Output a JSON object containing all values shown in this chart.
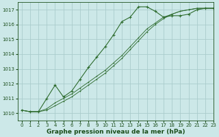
{
  "bg_color": "#cce8e8",
  "grid_color": "#aacccc",
  "line_color": "#2d6b2d",
  "text_color": "#1a4d1a",
  "xlabel": "Graphe pression niveau de la mer (hPa)",
  "xlim": [
    -0.5,
    23
  ],
  "ylim": [
    1009.5,
    1017.5
  ],
  "yticks": [
    1010,
    1011,
    1012,
    1013,
    1014,
    1015,
    1016,
    1017
  ],
  "xticks": [
    0,
    1,
    2,
    3,
    4,
    5,
    6,
    7,
    8,
    9,
    10,
    11,
    12,
    13,
    14,
    15,
    16,
    17,
    18,
    19,
    20,
    21,
    22,
    23
  ],
  "series1_x": [
    0,
    1,
    2,
    3,
    4,
    5,
    6,
    7,
    8,
    9,
    10,
    11,
    12,
    13,
    14,
    15,
    16,
    17,
    18,
    19,
    20,
    21,
    22,
    23
  ],
  "series1_y": [
    1010.2,
    1010.1,
    1010.1,
    1011.0,
    1011.9,
    1011.1,
    1011.5,
    1012.3,
    1013.1,
    1013.8,
    1014.5,
    1015.3,
    1016.2,
    1016.5,
    1017.2,
    1017.2,
    1016.9,
    1016.5,
    1016.6,
    1016.6,
    1016.7,
    1017.0,
    1017.1,
    1017.1
  ],
  "series2_x": [
    0,
    1,
    2,
    3,
    4,
    5,
    6,
    7,
    8,
    9,
    10,
    11,
    12,
    13,
    14,
    15,
    16,
    17,
    18,
    19,
    20,
    21,
    22,
    23
  ],
  "series2_y": [
    1010.2,
    1010.1,
    1010.1,
    1010.2,
    1010.5,
    1010.8,
    1011.1,
    1011.5,
    1011.9,
    1012.3,
    1012.7,
    1013.2,
    1013.7,
    1014.3,
    1014.9,
    1015.5,
    1016.0,
    1016.4,
    1016.7,
    1016.9,
    1017.0,
    1017.1,
    1017.1,
    1017.1
  ],
  "series3_x": [
    0,
    1,
    2,
    3,
    4,
    5,
    6,
    7,
    8,
    9,
    10,
    11,
    12,
    13,
    14,
    15,
    16,
    17,
    18,
    19,
    20,
    21,
    22,
    23
  ],
  "series3_y": [
    1010.2,
    1010.1,
    1010.1,
    1010.3,
    1010.7,
    1011.0,
    1011.3,
    1011.7,
    1012.1,
    1012.5,
    1012.9,
    1013.4,
    1013.9,
    1014.5,
    1015.1,
    1015.7,
    1016.1,
    1016.5,
    1016.7,
    1016.9,
    1017.0,
    1017.1,
    1017.1,
    1017.1
  ],
  "lw": 0.8,
  "ms": 2.0,
  "tick_fontsize": 5.0,
  "xlabel_fontsize": 6.5
}
